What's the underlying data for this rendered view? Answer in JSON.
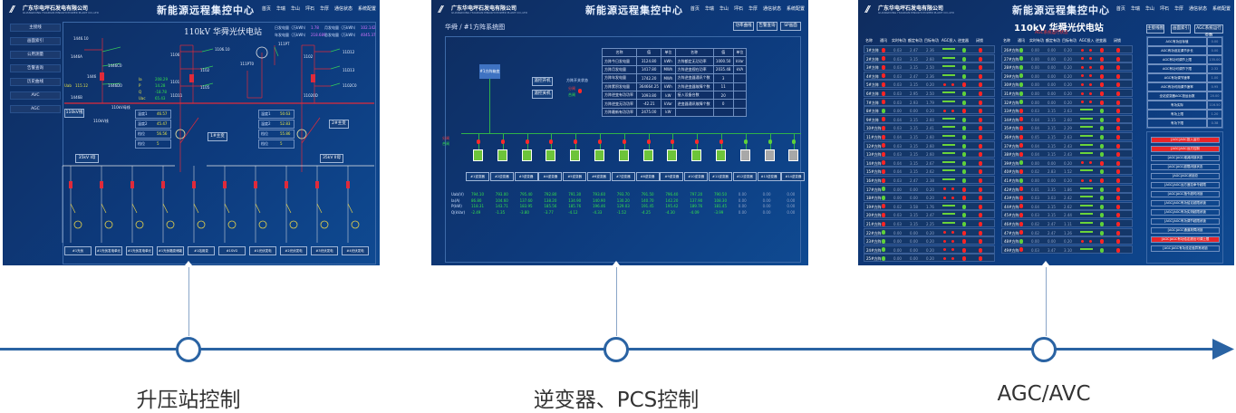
{
  "header": {
    "logo": "//",
    "company": "广东华电坪石发电有限公司",
    "company_en": "GUANGDONG HUADIAN PINGSHI POWER PLANT CO.,LTD",
    "title": "新能源远程集控中心",
    "nav": [
      "首页",
      "华瑞",
      "华山",
      "坪石",
      "华厚",
      "通信状态",
      "系统配置"
    ]
  },
  "panel1": {
    "sidebar": [
      "主接线",
      "画面索引",
      "公用测量",
      "告警查询",
      "历史曲线",
      "AVC",
      "AGC"
    ],
    "station_title": "110kV 华舜光伏电站",
    "stats": [
      {
        "label": "日发电量（万kWh）",
        "value": "1.78",
        "label2": "月发电量（万kWh）",
        "value2": "102.142"
      },
      {
        "label": "年发电量（万kWh）",
        "value": "218.689",
        "label2": "总发电量（万kWh）",
        "value2": "4045.37"
      }
    ],
    "line_labels": [
      "1446.10",
      "1446A",
      "1446",
      "1446B",
      "1446C0",
      "1446D0",
      "1106.10",
      "1101",
      "1102",
      "1105",
      "1106",
      "11D11",
      "11D12",
      "11D13",
      "111PT",
      "111PT0",
      "1102",
      "1102C0",
      "11020D",
      "110kV线",
      "110kV母线"
    ],
    "uab": {
      "label": "Uab",
      "value": "115.12"
    },
    "meas": [
      {
        "k": "Ia",
        "v": "208.29"
      },
      {
        "k": "P",
        "v": "14.28"
      },
      {
        "k": "Q",
        "v": "-18.78"
      },
      {
        "k": "Uac",
        "v": "65.43"
      }
    ],
    "temp_left": [
      {
        "k": "温度1",
        "v": "46.57"
      },
      {
        "k": "温度2",
        "v": "45.47"
      },
      {
        "k": "档位",
        "v": "56.56"
      },
      {
        "k": "档位",
        "v": "5"
      }
    ],
    "temp_right": [
      {
        "k": "温度1",
        "v": "50.63"
      },
      {
        "k": "温度2",
        "v": "52.83"
      },
      {
        "k": "档位",
        "v": "55.86"
      },
      {
        "k": "档位",
        "v": "5"
      }
    ],
    "xfmr": [
      "1#主变",
      "2#主变"
    ],
    "bus35": [
      "35kV I母",
      "35kV II母"
    ],
    "feeders": [
      "#1光伏",
      "#1光伏发电单元",
      "#1光伏发电单元",
      "#1光伏箱变储能",
      "#1站用变",
      "#1SVG",
      "#1光伏发电",
      "#2光伏发电",
      "#3光伏发电",
      "#4光伏发电"
    ]
  },
  "panel2": {
    "breadcrumb": "华舜 / #1方阵系统图",
    "buttons": [
      "功率曲线",
      "告警查询",
      "SP画面"
    ],
    "box": "#1方阵箱变",
    "ctrl": [
      "遥控开机",
      "遥控关机"
    ],
    "switch_status": {
      "label": "方阵开关状态",
      "open": "分闸",
      "closed": "合闸"
    },
    "table_header": [
      "名称",
      "值",
      "单位",
      "名称",
      "值",
      "单位"
    ],
    "table_rows": [
      [
        "方阵今日发电量",
        "3124.80",
        "kWh",
        "方阵额定无功功率",
        "1000.50",
        "kVar"
      ],
      [
        "方阵月发电量",
        "1417.80",
        "MWh",
        "方阵逆变视在功率",
        "2035.48",
        "kVA"
      ],
      [
        "方阵年发电量",
        "1742.20",
        "MWh",
        "方阵逆变器通讯个数",
        "3",
        ""
      ],
      [
        "方阵累积发电量",
        "364664.25",
        "kWh",
        "方阵逆变器故障个数",
        "11",
        ""
      ],
      [
        "方阵逆变有功功率",
        "1093.80",
        "kW",
        "接入设备台数",
        "20",
        ""
      ],
      [
        "方阵逆变无功功率",
        "-42.21",
        "kVar",
        "逆变器通讯故障个数",
        "0",
        ""
      ],
      [
        "方阵最新有功功率",
        "2475.00",
        "kW",
        "",
        "",
        ""
      ]
    ],
    "legend": [
      "分闸",
      "合闸"
    ],
    "inverters": [
      "#1逆变器",
      "#2逆变器",
      "#3逆变器",
      "#4逆变器",
      "#5逆变器",
      "#6逆变器",
      "#7逆变器",
      "#8逆变器",
      "#9逆变器",
      "#10逆变器",
      "#11逆变器",
      "#12逆变器",
      "#13逆变器",
      "#14逆变器"
    ],
    "inverter_online": [
      true,
      true,
      true,
      true,
      true,
      true,
      true,
      true,
      true,
      true,
      true,
      false,
      false,
      false
    ],
    "meas_labels": [
      "Uab(V)",
      "Ia(A)",
      "P(kW)",
      "Q(kVar)"
    ],
    "meas": [
      [
        "794.10",
        "793.00",
        "795.40",
        "792.80",
        "791.30",
        "793.60",
        "793.70",
        "791.50",
        "796.40",
        "797.20",
        "790.50",
        "0.00",
        "0.00",
        "0.00"
      ],
      [
        "86.80",
        "104.60",
        "137.60",
        "138.20",
        "134.90",
        "140.90",
        "130.20",
        "140.70",
        "142.20",
        "137.90",
        "108.30",
        "0.00",
        "0.00",
        "0.00"
      ],
      [
        "118.31",
        "143.71",
        "183.95",
        "185.56",
        "185.76",
        "196.46",
        "129.03",
        "191.45",
        "195.42",
        "189.76",
        "181.45",
        "0.00",
        "0.00",
        "0.00"
      ],
      [
        "-2.49",
        "-1.35",
        "-3.80",
        "-3.77",
        "-4.12",
        "-4.33",
        "-1.52",
        "-4.25",
        "-4.30",
        "-4.09",
        "-3.99",
        "0.00",
        "0.00",
        "0.00"
      ]
    ],
    "colors": {
      "online": "#6dc43a",
      "offline": "#a8a8a8"
    }
  },
  "panel3": {
    "station_title": "110kV 华舜光伏电站",
    "subtitle": "AGC系统运行状态",
    "buttons": [
      "主接线图",
      "画面索引",
      "AGC系统运行参数"
    ],
    "columns": [
      "名称",
      "通讯",
      "实时有功",
      "额定有功",
      "目标有功",
      "AGC投入",
      "逆变器",
      "闭锁"
    ],
    "left_rows": [
      [
        "1#方阵",
        0,
        "0.03",
        "2.47",
        "2.36",
        1
      ],
      [
        "2#方阵",
        0,
        "0.03",
        "3.15",
        "2.60",
        1
      ],
      [
        "3#方阵",
        0,
        "0.03",
        "3.15",
        "2.50",
        1
      ],
      [
        "4#方阵",
        0,
        "0.03",
        "2.47",
        "2.36",
        1
      ],
      [
        "5#方阵",
        0,
        "0.03",
        "3.15",
        "0.20",
        0
      ],
      [
        "6#方阵",
        0,
        "0.03",
        "2.95",
        "2.50",
        1
      ],
      [
        "7#方阵",
        0,
        "0.03",
        "2.93",
        "1.79",
        1
      ],
      [
        "8#方阵",
        1,
        "0.00",
        "0.00",
        "0.20",
        0
      ],
      [
        "9#方阵",
        0,
        "0.04",
        "3.15",
        "2.60",
        1
      ],
      [
        "10#方阵",
        0,
        "0.03",
        "3.15",
        "2.41",
        1
      ],
      [
        "11#方阵",
        0,
        "0.04",
        "3.15",
        "2.60",
        1
      ],
      [
        "12#方阵",
        0,
        "0.03",
        "3.15",
        "2.60",
        1
      ],
      [
        "13#方阵",
        0,
        "0.03",
        "3.15",
        "2.60",
        1
      ],
      [
        "14#方阵",
        0,
        "0.04",
        "3.15",
        "2.67",
        1
      ],
      [
        "15#方阵",
        0,
        "0.04",
        "3.15",
        "2.62",
        1
      ],
      [
        "16#方阵",
        0,
        "0.03",
        "2.47",
        "2.38",
        1
      ],
      [
        "17#方阵",
        1,
        "0.00",
        "0.00",
        "0.20",
        0
      ],
      [
        "18#方阵",
        1,
        "0.00",
        "0.00",
        "0.20",
        0
      ],
      [
        "19#方阵",
        0,
        "0.02",
        "3.58",
        "1.76",
        1
      ],
      [
        "20#方阵",
        0,
        "0.03",
        "3.15",
        "2.47",
        1
      ],
      [
        "21#方阵",
        0,
        "0.03",
        "3.15",
        "2.25",
        1
      ],
      [
        "22#方阵",
        1,
        "0.00",
        "0.00",
        "0.20",
        0
      ],
      [
        "23#方阵",
        1,
        "0.00",
        "0.00",
        "0.20",
        0
      ],
      [
        "24#方阵",
        1,
        "0.00",
        "0.00",
        "0.20",
        0
      ],
      [
        "25#方阵",
        1,
        "0.00",
        "0.00",
        "0.20",
        0
      ]
    ],
    "right_rows": [
      [
        "26#方阵",
        1,
        "0.00",
        "0.00",
        "0.20",
        0
      ],
      [
        "27#方阵",
        1,
        "0.00",
        "0.00",
        "0.20",
        0
      ],
      [
        "28#方阵",
        1,
        "0.00",
        "0.00",
        "0.20",
        0
      ],
      [
        "29#方阵",
        1,
        "0.00",
        "0.00",
        "0.20",
        0
      ],
      [
        "30#方阵",
        1,
        "0.00",
        "0.00",
        "0.20",
        0
      ],
      [
        "31#方阵",
        1,
        "0.00",
        "0.00",
        "0.20",
        0
      ],
      [
        "32#方阵",
        1,
        "0.00",
        "0.00",
        "0.20",
        0
      ],
      [
        "33#方阵",
        0,
        "0.03",
        "3.15",
        "2.63",
        1
      ],
      [
        "34#方阵",
        0,
        "0.04",
        "3.15",
        "2.60",
        1
      ],
      [
        "35#方阵",
        0,
        "0.04",
        "3.15",
        "2.29",
        1
      ],
      [
        "36#方阵",
        0,
        "0.05",
        "3.15",
        "2.63",
        1
      ],
      [
        "37#方阵",
        0,
        "0.04",
        "3.15",
        "2.43",
        1
      ],
      [
        "38#方阵",
        0,
        "0.04",
        "3.15",
        "2.43",
        1
      ],
      [
        "39#方阵",
        1,
        "0.00",
        "0.00",
        "0.20",
        0
      ],
      [
        "40#方阵",
        0,
        "0.02",
        "2.83",
        "1.52",
        1
      ],
      [
        "41#方阵",
        1,
        "0.00",
        "0.00",
        "0.20",
        0
      ],
      [
        "42#方阵",
        0,
        "0.01",
        "3.35",
        "1.86",
        1
      ],
      [
        "43#方阵",
        0,
        "0.03",
        "3.03",
        "2.42",
        1
      ],
      [
        "44#方阵",
        0,
        "0.04",
        "3.15",
        "2.62",
        1
      ],
      [
        "45#方阵",
        0,
        "0.03",
        "3.15",
        "2.44",
        1
      ],
      [
        "46#方阵",
        0,
        "0.02",
        "2.47",
        "1.11",
        1
      ],
      [
        "47#方阵",
        0,
        "0.02",
        "2.47",
        "1.26",
        1
      ],
      [
        "48#方阵",
        1,
        "0.00",
        "0.00",
        "0.20",
        0
      ],
      [
        "49#方阵",
        0,
        "0.03",
        "3.47",
        "3.10",
        1
      ]
    ],
    "params": [
      [
        "AGC有功目标值",
        "0.00"
      ],
      [
        "AGC有功设定调节步长",
        "0.00"
      ],
      [
        "AGC有功可调节上限",
        "135.00"
      ],
      [
        "AGC有功可调节下限",
        "2.32"
      ],
      [
        "AGC有功调节速率",
        "1.00"
      ],
      [
        "AGC有功可用调节速率",
        "0.95"
      ],
      [
        "全站逆变器AGC投运台数",
        "20.00"
      ],
      [
        "有功实际",
        "116.50"
      ],
      [
        "有功上限",
        "1.20"
      ],
      [
        "有功下限",
        "0.38"
      ]
    ],
    "alarms": [
      [
        "[AGC]AGC投入运行",
        1
      ],
      [
        "[AGC]AGC远方控制",
        1
      ],
      [
        "[AGC]AGC增减闭锁状态",
        0
      ],
      [
        "[AGC]AGC越限闭锁状态",
        0
      ],
      [
        "[AGC]AGC闭锁总",
        0
      ],
      [
        "[AGC]AGC远方遥控命令越限",
        0
      ],
      [
        "[AGC]AGC指令超时闭锁",
        0
      ],
      [
        "[AGC]AGC有功给定越限闭锁",
        0
      ],
      [
        "[AGC]AGC有功实测越限闭锁",
        0
      ],
      [
        "[AGC]AGC有功调节越限闭锁",
        0
      ],
      [
        "[AGC]AGC通道故障闭锁",
        0
      ],
      [
        "[AGC]AGC有功给定超出可调上限",
        1
      ],
      [
        "[AGC]AGC有功设定值异常闭锁",
        0
      ]
    ],
    "colors": {
      "ok": "#5fd13a",
      "bad": "#ff2424",
      "alarm_on": "#e8262a"
    }
  },
  "timeline": {
    "labels": [
      "升压站控制",
      "逆变器、PCS控制",
      "AGC/AVC"
    ],
    "color": "#2a63a3"
  }
}
